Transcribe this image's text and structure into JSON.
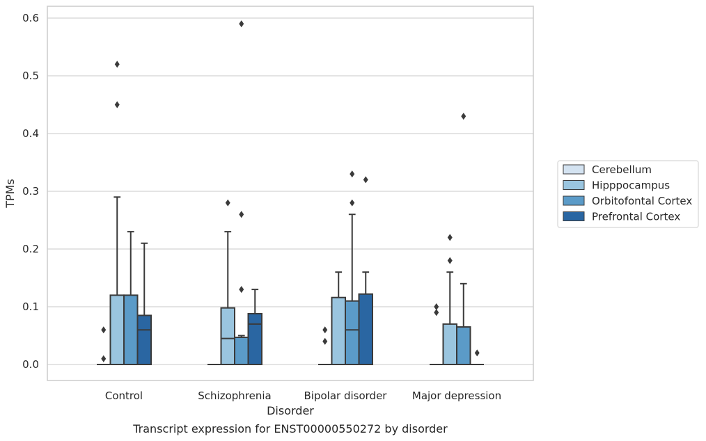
{
  "caption": "Transcript expression for ENST00000550272 by disorder",
  "chart_data": {
    "type": "boxplot",
    "xlabel": "Disorder",
    "ylabel": "TPMs",
    "ylim": [
      -0.03,
      0.62
    ],
    "yticks": [
      0.0,
      0.1,
      0.2,
      0.3,
      0.4,
      0.5,
      0.6
    ],
    "ytick_labels": [
      "0.0",
      "0.1",
      "0.2",
      "0.3",
      "0.4",
      "0.5",
      "0.6"
    ],
    "grid": "horizontal",
    "legend_position": "right",
    "categories": [
      "Control",
      "Schizophrenia",
      "Bipolar disorder",
      "Major depression"
    ],
    "series": [
      {
        "name": "Cerebellum",
        "color": "#d4e3f1",
        "boxes": [
          {
            "q1": 0,
            "median": 0,
            "q3": 0,
            "whisker_low": 0,
            "whisker_high": 0,
            "outliers": [
              0.01,
              0.06
            ]
          },
          {
            "q1": 0,
            "median": 0,
            "q3": 0,
            "whisker_low": 0,
            "whisker_high": 0,
            "outliers": []
          },
          {
            "q1": 0,
            "median": 0,
            "q3": 0,
            "whisker_low": 0,
            "whisker_high": 0,
            "outliers": [
              0.04,
              0.06
            ]
          },
          {
            "q1": 0,
            "median": 0,
            "q3": 0,
            "whisker_low": 0,
            "whisker_high": 0,
            "outliers": [
              0.09,
              0.1
            ]
          }
        ]
      },
      {
        "name": "Hipppocampus",
        "color": "#9ac5df",
        "boxes": [
          {
            "q1": 0,
            "median": 0,
            "q3": 0.12,
            "whisker_low": 0,
            "whisker_high": 0.29,
            "outliers": [
              0.45,
              0.52
            ]
          },
          {
            "q1": 0,
            "median": 0.045,
            "q3": 0.098,
            "whisker_low": 0,
            "whisker_high": 0.23,
            "outliers": [
              0.28
            ]
          },
          {
            "q1": 0,
            "median": 0,
            "q3": 0.116,
            "whisker_low": 0,
            "whisker_high": 0.16,
            "outliers": []
          },
          {
            "q1": 0,
            "median": 0,
            "q3": 0.07,
            "whisker_low": 0,
            "whisker_high": 0.16,
            "outliers": [
              0.18,
              0.22
            ]
          }
        ]
      },
      {
        "name": "Orbitofontal Cortex",
        "color": "#5b9bc8",
        "boxes": [
          {
            "q1": 0,
            "median": 0,
            "q3": 0.12,
            "whisker_low": 0,
            "whisker_high": 0.23,
            "outliers": []
          },
          {
            "q1": 0,
            "median": 0.047,
            "q3": 0.047,
            "whisker_low": 0,
            "whisker_high": 0.05,
            "outliers": [
              0.13,
              0.26,
              0.59
            ]
          },
          {
            "q1": 0,
            "median": 0.06,
            "q3": 0.11,
            "whisker_low": 0,
            "whisker_high": 0.26,
            "outliers": [
              0.28,
              0.33
            ]
          },
          {
            "q1": 0,
            "median": 0,
            "q3": 0.065,
            "whisker_low": 0,
            "whisker_high": 0.14,
            "outliers": [
              0.43
            ]
          }
        ]
      },
      {
        "name": "Prefrontal Cortex",
        "color": "#2a66a2",
        "boxes": [
          {
            "q1": 0,
            "median": 0.06,
            "q3": 0.085,
            "whisker_low": 0,
            "whisker_high": 0.21,
            "outliers": []
          },
          {
            "q1": 0,
            "median": 0.07,
            "q3": 0.088,
            "whisker_low": 0,
            "whisker_high": 0.13,
            "outliers": []
          },
          {
            "q1": 0,
            "median": 0,
            "q3": 0.122,
            "whisker_low": 0,
            "whisker_high": 0.16,
            "outliers": [
              0.32
            ]
          },
          {
            "q1": 0,
            "median": 0,
            "q3": 0,
            "whisker_low": 0,
            "whisker_high": 0,
            "outliers": [
              0.02
            ]
          }
        ]
      }
    ]
  }
}
